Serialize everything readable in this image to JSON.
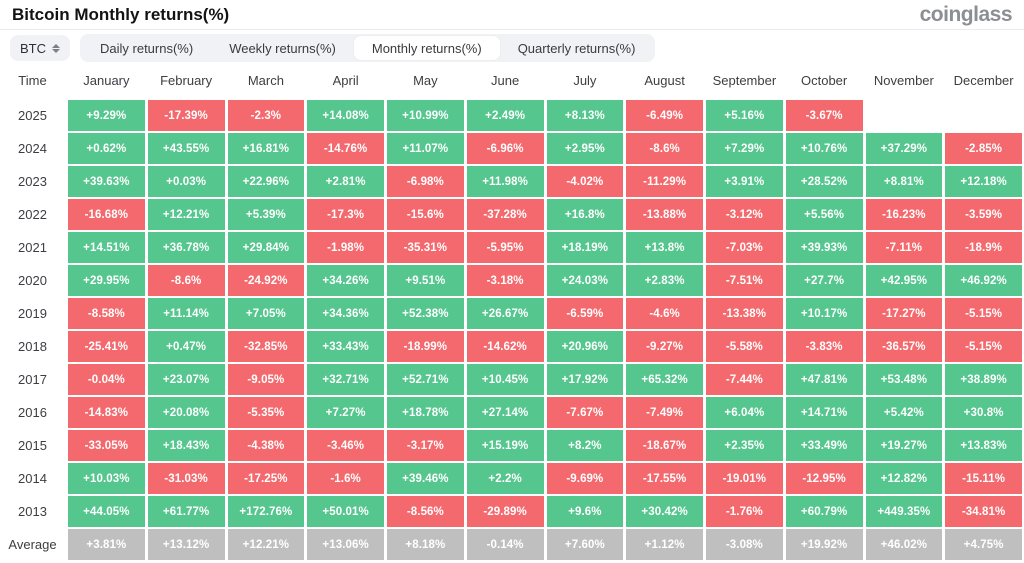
{
  "header": {
    "title": "Bitcoin Monthly returns(%)",
    "brand": "coinglass"
  },
  "controls": {
    "symbol": "BTC",
    "tabs": [
      {
        "label": "Daily returns(%)",
        "active": false
      },
      {
        "label": "Weekly returns(%)",
        "active": false
      },
      {
        "label": "Monthly returns(%)",
        "active": true
      },
      {
        "label": "Quarterly returns(%)",
        "active": false
      }
    ]
  },
  "chart_data": {
    "type": "heatmap",
    "title": "Bitcoin Monthly returns(%)",
    "columns": [
      "Time",
      "January",
      "February",
      "March",
      "April",
      "May",
      "June",
      "July",
      "August",
      "September",
      "October",
      "November",
      "December"
    ],
    "rows": [
      {
        "label": "2025",
        "values": [
          "+9.29%",
          "-17.39%",
          "-2.3%",
          "+14.08%",
          "+10.99%",
          "+2.49%",
          "+8.13%",
          "-6.49%",
          "+5.16%",
          "-3.67%",
          "",
          ""
        ]
      },
      {
        "label": "2024",
        "values": [
          "+0.62%",
          "+43.55%",
          "+16.81%",
          "-14.76%",
          "+11.07%",
          "-6.96%",
          "+2.95%",
          "-8.6%",
          "+7.29%",
          "+10.76%",
          "+37.29%",
          "-2.85%"
        ]
      },
      {
        "label": "2023",
        "values": [
          "+39.63%",
          "+0.03%",
          "+22.96%",
          "+2.81%",
          "-6.98%",
          "+11.98%",
          "-4.02%",
          "-11.29%",
          "+3.91%",
          "+28.52%",
          "+8.81%",
          "+12.18%"
        ]
      },
      {
        "label": "2022",
        "values": [
          "-16.68%",
          "+12.21%",
          "+5.39%",
          "-17.3%",
          "-15.6%",
          "-37.28%",
          "+16.8%",
          "-13.88%",
          "-3.12%",
          "+5.56%",
          "-16.23%",
          "-3.59%"
        ]
      },
      {
        "label": "2021",
        "values": [
          "+14.51%",
          "+36.78%",
          "+29.84%",
          "-1.98%",
          "-35.31%",
          "-5.95%",
          "+18.19%",
          "+13.8%",
          "-7.03%",
          "+39.93%",
          "-7.11%",
          "-18.9%"
        ]
      },
      {
        "label": "2020",
        "values": [
          "+29.95%",
          "-8.6%",
          "-24.92%",
          "+34.26%",
          "+9.51%",
          "-3.18%",
          "+24.03%",
          "+2.83%",
          "-7.51%",
          "+27.7%",
          "+42.95%",
          "+46.92%"
        ]
      },
      {
        "label": "2019",
        "values": [
          "-8.58%",
          "+11.14%",
          "+7.05%",
          "+34.36%",
          "+52.38%",
          "+26.67%",
          "-6.59%",
          "-4.6%",
          "-13.38%",
          "+10.17%",
          "-17.27%",
          "-5.15%"
        ]
      },
      {
        "label": "2018",
        "values": [
          "-25.41%",
          "+0.47%",
          "-32.85%",
          "+33.43%",
          "-18.99%",
          "-14.62%",
          "+20.96%",
          "-9.27%",
          "-5.58%",
          "-3.83%",
          "-36.57%",
          "-5.15%"
        ]
      },
      {
        "label": "2017",
        "values": [
          "-0.04%",
          "+23.07%",
          "-9.05%",
          "+32.71%",
          "+52.71%",
          "+10.45%",
          "+17.92%",
          "+65.32%",
          "-7.44%",
          "+47.81%",
          "+53.48%",
          "+38.89%"
        ]
      },
      {
        "label": "2016",
        "values": [
          "-14.83%",
          "+20.08%",
          "-5.35%",
          "+7.27%",
          "+18.78%",
          "+27.14%",
          "-7.67%",
          "-7.49%",
          "+6.04%",
          "+14.71%",
          "+5.42%",
          "+30.8%"
        ]
      },
      {
        "label": "2015",
        "values": [
          "-33.05%",
          "+18.43%",
          "-4.38%",
          "-3.46%",
          "-3.17%",
          "+15.19%",
          "+8.2%",
          "-18.67%",
          "+2.35%",
          "+33.49%",
          "+19.27%",
          "+13.83%"
        ]
      },
      {
        "label": "2014",
        "values": [
          "+10.03%",
          "-31.03%",
          "-17.25%",
          "-1.6%",
          "+39.46%",
          "+2.2%",
          "-9.69%",
          "-17.55%",
          "-19.01%",
          "-12.95%",
          "+12.82%",
          "-15.11%"
        ]
      },
      {
        "label": "2013",
        "values": [
          "+44.05%",
          "+61.77%",
          "+172.76%",
          "+50.01%",
          "-8.56%",
          "-29.89%",
          "+9.6%",
          "+30.42%",
          "-1.76%",
          "+60.79%",
          "+449.35%",
          "-34.81%"
        ]
      },
      {
        "label": "Average",
        "values": [
          "+3.81%",
          "+13.12%",
          "+12.21%",
          "+13.06%",
          "+8.18%",
          "-0.14%",
          "+7.60%",
          "+1.12%",
          "-3.08%",
          "+19.92%",
          "+46.02%",
          "+4.75%"
        ]
      }
    ],
    "colors": {
      "positive": "#54c68e",
      "negative": "#f4696e",
      "average": "#bfbfbf"
    }
  }
}
